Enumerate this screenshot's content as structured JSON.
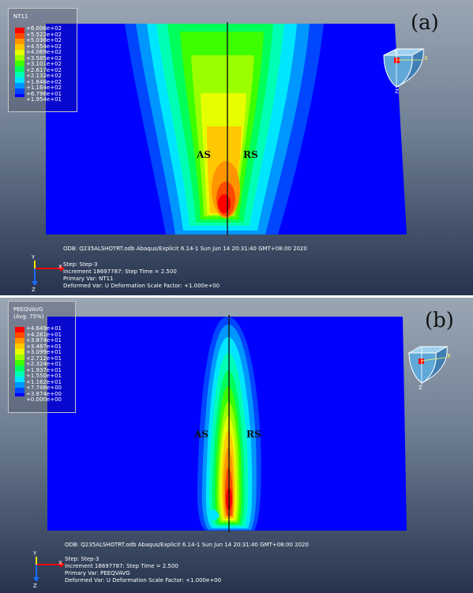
{
  "panels": [
    {
      "id": "a",
      "tag": "(a)",
      "variable": "NT11",
      "variable_sub": "",
      "legend": [
        "+6.006e+02",
        "+5.522e+02",
        "+5.038e+02",
        "+4.554e+02",
        "+4.069e+02",
        "+3.585e+02",
        "+3.101e+02",
        "+2.617e+02",
        "+2.132e+02",
        "+1.648e+02",
        "+1.164e+02",
        "+6.796e+01",
        "+1.954e+01"
      ],
      "as_label": "AS",
      "rs_label": "RS",
      "odb_line": "ODB: Q235ALSHOTRT.odb    Abaqus/Explicit 6.14-1    Sun Jun 14 20:31:40 GMT+08:00 2020",
      "step_line": "Step: Step-3",
      "increment_line": "Increment  18697787: Step Time =    2.500",
      "primary_line": "Primary Var: NT11",
      "deformed_line": "Deformed Var: U   Deformation Scale Factor: +1.000e+00"
    },
    {
      "id": "b",
      "tag": "(b)",
      "variable": "PEEQVAVG",
      "variable_sub": "(Avg: 75%)",
      "legend": [
        "+4.649e+01",
        "+4.261e+01",
        "+3.874e+01",
        "+3.487e+01",
        "+3.099e+01",
        "+2.712e+01",
        "+2.324e+01",
        "+1.937e+01",
        "+1.550e+01",
        "+1.162e+01",
        "+7.748e+00",
        "+3.874e+00",
        "+0.000e+00"
      ],
      "as_label": "AS",
      "rs_label": "RS",
      "odb_line": "ODB: Q235ALSHOTRT.odb    Abaqus/Explicit 6.14-1    Sun Jun 14 20:31:40 GMT+08:00 2020",
      "step_line": "Step: Step-3",
      "increment_line": "Increment  18697787: Step Time =    2.500",
      "primary_line": "Primary Var: PEEQVAVG",
      "deformed_line": "Deformed Var: U   Deformation Scale Factor: +1.000e+00"
    }
  ],
  "triad": {
    "x": "X",
    "y": "Y",
    "z": "Z"
  },
  "colors": {
    "contour": [
      "#ff0000",
      "#ff4a00",
      "#ff9500",
      "#ffc800",
      "#e6ff00",
      "#9bff00",
      "#3cff00",
      "#00ff5a",
      "#00ffb4",
      "#00e6ff",
      "#0096ff",
      "#0046ff",
      "#0000ff"
    ]
  }
}
